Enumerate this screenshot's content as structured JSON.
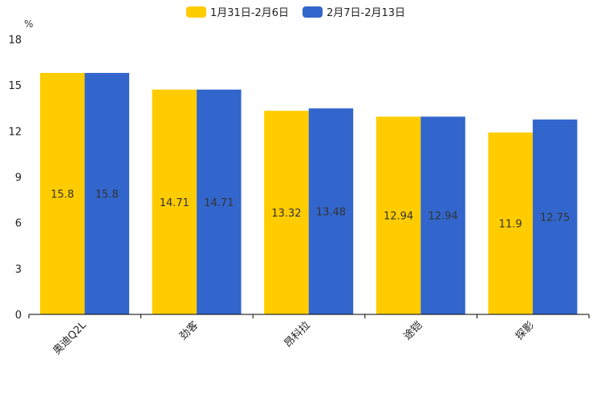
{
  "chart_data": {
    "type": "bar",
    "title": "",
    "ylabel": "%",
    "xlabel": "",
    "ylim": [
      0,
      18
    ],
    "yticks": [
      0,
      3,
      6,
      9,
      12,
      15,
      18
    ],
    "categories": [
      "奥迪Q2L",
      "劲客",
      "昂科拉",
      "途铠",
      "探影"
    ],
    "series": [
      {
        "name": "1月31日-2月6日",
        "color": "#FFCC00",
        "values": [
          15.8,
          14.71,
          13.32,
          12.94,
          11.9
        ]
      },
      {
        "name": "2月7日-2月13日",
        "color": "#3366CC",
        "values": [
          15.8,
          14.71,
          13.48,
          12.94,
          12.75
        ]
      }
    ],
    "legend_position": "top-center",
    "grid": false
  }
}
